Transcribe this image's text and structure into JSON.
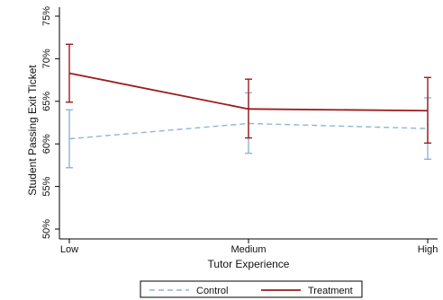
{
  "chart_data": {
    "type": "line",
    "title": "",
    "xlabel": "Tutor Experience",
    "ylabel": "Student Passing Exit Ticket",
    "categories": [
      "Low",
      "Medium",
      "High"
    ],
    "ylim": [
      50,
      75
    ],
    "yticks": [
      50,
      55,
      60,
      65,
      70,
      75
    ],
    "ytick_labels": [
      "50%",
      "55%",
      "60%",
      "65%",
      "70%",
      "75%"
    ],
    "grid": false,
    "legend_position": "bottom",
    "series": [
      {
        "name": "Control",
        "color": "#8fb4d6",
        "dash": "dashed",
        "values": [
          60.6,
          62.4,
          61.8
        ],
        "ci_low": [
          57.2,
          58.9,
          58.2
        ],
        "ci_high": [
          64.0,
          66.0,
          65.4
        ]
      },
      {
        "name": "Treatment",
        "color": "#9b1c1c",
        "dash": "solid",
        "values": [
          68.3,
          64.1,
          63.9
        ],
        "ci_low": [
          64.9,
          60.7,
          60.1
        ],
        "ci_high": [
          71.7,
          67.6,
          67.8
        ]
      }
    ]
  }
}
